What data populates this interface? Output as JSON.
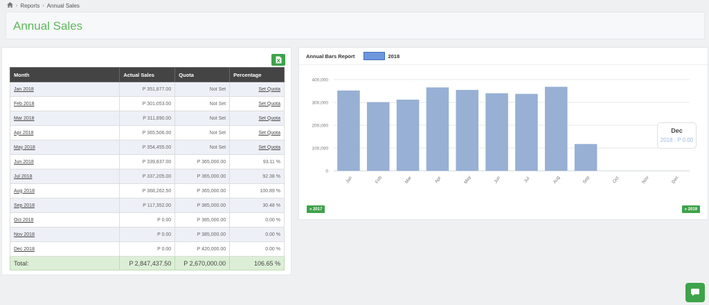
{
  "breadcrumb": {
    "home_icon": "home-icon",
    "items": [
      "Reports",
      "Annual Sales"
    ]
  },
  "page": {
    "title": "Annual Sales"
  },
  "table": {
    "headers": [
      "Month",
      "Actual Sales",
      "Quota",
      "Percentage"
    ],
    "rows": [
      {
        "month": "Jan 2018",
        "actual": "P 351,877.00",
        "quota": "Not Set",
        "percentage": "Set Quota"
      },
      {
        "month": "Feb 2018",
        "actual": "P 301,053.00",
        "quota": "Not Set",
        "percentage": "Set Quota"
      },
      {
        "month": "Mar 2018",
        "actual": "P 311,890.00",
        "quota": "Not Set",
        "percentage": "Set Quota"
      },
      {
        "month": "Apr 2018",
        "actual": "P 365,506.00",
        "quota": "Not Set",
        "percentage": "Set Quota"
      },
      {
        "month": "May 2018",
        "actual": "P 354,455.00",
        "quota": "Not Set",
        "percentage": "Set Quota"
      },
      {
        "month": "Jun 2018",
        "actual": "P 339,837.00",
        "quota": "P 365,000.00",
        "percentage": "93.11 %"
      },
      {
        "month": "Jul 2018",
        "actual": "P 337,205.00",
        "quota": "P 365,000.00",
        "percentage": "92.38 %"
      },
      {
        "month": "Aug 2018",
        "actual": "P 368,262.50",
        "quota": "P 365,000.00",
        "percentage": "100.89 %"
      },
      {
        "month": "Sep 2018",
        "actual": "P 117,352.00",
        "quota": "P 385,000.00",
        "percentage": "30.48 %"
      },
      {
        "month": "Oct 2018",
        "actual": "P 0.00",
        "quota": "P 385,000.00",
        "percentage": "0.00 %"
      },
      {
        "month": "Nov 2018",
        "actual": "P 0.00",
        "quota": "P 385,000.00",
        "percentage": "0.00 %"
      },
      {
        "month": "Dec 2018",
        "actual": "P 0.00",
        "quota": "P 420,000.00",
        "percentage": "0.00 %"
      }
    ],
    "footer": {
      "label": "Total:",
      "actual": "P 2,847,437.50",
      "quota": "P 2,670,000.00",
      "percentage": "106.65 %"
    }
  },
  "excel_button": {
    "icon": "excel-icon"
  },
  "chart_panel": {
    "title": "Annual Bars Report",
    "prev_label": "« 2017",
    "next_label": "» 2019"
  },
  "tooltip": {
    "title": "Dec",
    "value": "2018 : P 0.00"
  },
  "chart_data": {
    "type": "bar",
    "categories": [
      "Jan",
      "Feb",
      "Mar",
      "Apr",
      "May",
      "Jun",
      "Jul",
      "Aug",
      "Sep",
      "Oct",
      "Nov",
      "Dec"
    ],
    "series": [
      {
        "name": "2018",
        "values": [
          351877,
          301053,
          311890,
          365506,
          354455,
          339837,
          337205,
          368262.5,
          117352,
          0,
          0,
          0
        ]
      }
    ],
    "y_ticks": [
      "0",
      "100,000",
      "200,000",
      "300,000",
      "400,000"
    ],
    "ylim": [
      0,
      400000
    ],
    "grid": true,
    "legend": "top-left",
    "colors": {
      "bar": "#97b0d4",
      "legend_fill": "#6f97dc",
      "accent": "#3ea34a",
      "title": "#5cb85c"
    }
  },
  "chat_button": {
    "icon": "chat-icon"
  }
}
